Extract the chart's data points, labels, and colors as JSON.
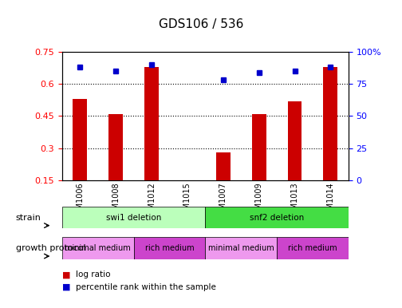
{
  "title": "GDS106 / 536",
  "samples": [
    "GSM1006",
    "GSM1008",
    "GSM1012",
    "GSM1015",
    "GSM1007",
    "GSM1009",
    "GSM1013",
    "GSM1014"
  ],
  "log_ratio": [
    0.53,
    0.46,
    0.68,
    0.0,
    0.28,
    0.46,
    0.52,
    0.68
  ],
  "percentile_rank": [
    88,
    85,
    90,
    0,
    78,
    84,
    85,
    88
  ],
  "ylim_left": [
    0.15,
    0.75
  ],
  "ylim_right": [
    0,
    100
  ],
  "yticks_left": [
    0.15,
    0.3,
    0.45,
    0.6,
    0.75
  ],
  "yticks_right": [
    0,
    25,
    50,
    75,
    100
  ],
  "bar_color": "#cc0000",
  "dot_color": "#0000cc",
  "strain_groups": [
    {
      "label": "swi1 deletion",
      "start": 0,
      "end": 4,
      "color": "#bbffbb"
    },
    {
      "label": "snf2 deletion",
      "start": 4,
      "end": 8,
      "color": "#44dd44"
    }
  ],
  "protocol_groups": [
    {
      "label": "minimal medium",
      "start": 0,
      "end": 2,
      "color": "#ee99ee"
    },
    {
      "label": "rich medium",
      "start": 2,
      "end": 4,
      "color": "#cc44cc"
    },
    {
      "label": "minimal medium",
      "start": 4,
      "end": 6,
      "color": "#ee99ee"
    },
    {
      "label": "rich medium",
      "start": 6,
      "end": 8,
      "color": "#cc44cc"
    }
  ],
  "strain_label": "strain",
  "protocol_label": "growth protocol",
  "legend_items": [
    {
      "label": "log ratio",
      "color": "#cc0000"
    },
    {
      "label": "percentile rank within the sample",
      "color": "#0000cc"
    }
  ]
}
